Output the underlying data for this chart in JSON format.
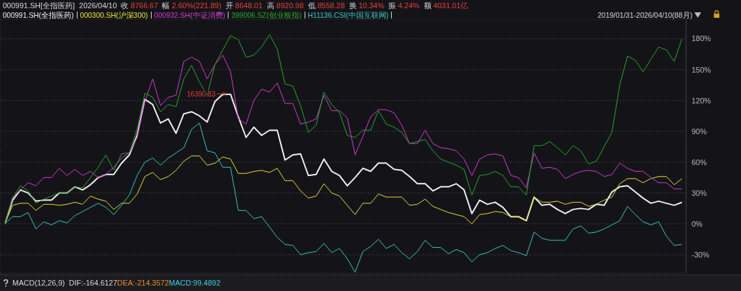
{
  "chart_data": {
    "type": "line",
    "title": "000991.SH[全指医药]  2026/04/10  收 8766.67  幅 2.60%(221.89)  开 8648.01  高 8920.98  低 8558.28  换 10.34%  振 4.24%  额 4031.01亿",
    "subtitle": "2019/01/31-2026/04/10(88月)",
    "categories": [
      null,
      null,
      null,
      null,
      null,
      null,
      null,
      null,
      null,
      null,
      null,
      null,
      null,
      null,
      null,
      null,
      null,
      null,
      null,
      null,
      null,
      null,
      null,
      null,
      null,
      null,
      null,
      null,
      null,
      null,
      null,
      null,
      null,
      null,
      null,
      null,
      null,
      null,
      null,
      null,
      null,
      null,
      null,
      null,
      null,
      null,
      null,
      null,
      null,
      null,
      null,
      null,
      null,
      null,
      null,
      null,
      null,
      null,
      null,
      null,
      null,
      null,
      null,
      null,
      null,
      null,
      null,
      null,
      null,
      null,
      null,
      null,
      null,
      null,
      null,
      null,
      null,
      null,
      null,
      null,
      null,
      null,
      null,
      null,
      null,
      null,
      null,
      null
    ],
    "series": [
      {
        "name": "000991.SH(全指医药)",
        "color": "#f2f2f2",
        "values": [
          0,
          23,
          33,
          30,
          22,
          23,
          23,
          30,
          30,
          36,
          33,
          38,
          45,
          48,
          48,
          59,
          67,
          86,
          121,
          116,
          98,
          102,
          88,
          107,
          109,
          105,
          99,
          119,
          126,
          126,
          104,
          84,
          94,
          86,
          91,
          91,
          62,
          67,
          68,
          47,
          48,
          63,
          51,
          47,
          37,
          45,
          54,
          51,
          59,
          59,
          53,
          52,
          46,
          39,
          39,
          32,
          36,
          36,
          39,
          33,
          10,
          23,
          19,
          21,
          16,
          7,
          7,
          3,
          26,
          18,
          19,
          14,
          10,
          14,
          15,
          14,
          19,
          18,
          31,
          36,
          37,
          31,
          25,
          20,
          22,
          20,
          18,
          21
        ]
      },
      {
        "name": "000300.SH(沪深300)",
        "color": "#e6e632",
        "values": [
          0,
          18,
          20,
          20,
          13,
          19,
          19,
          18,
          19,
          21,
          19,
          27,
          24,
          22,
          14,
          20,
          20,
          29,
          46,
          50,
          43,
          46,
          52,
          61,
          66,
          66,
          57,
          59,
          65,
          63,
          49,
          49,
          51,
          52,
          50,
          54,
          42,
          42,
          32,
          25,
          27,
          39,
          30,
          27,
          18,
          9,
          20,
          20,
          29,
          26,
          26,
          26,
          18,
          19,
          24,
          17,
          14,
          11,
          9,
          7,
          0,
          9,
          10,
          12,
          11,
          7,
          7,
          3,
          26,
          21,
          21,
          22,
          19,
          21,
          21,
          17,
          19,
          23,
          26,
          39,
          44,
          44,
          40,
          44,
          46,
          46,
          38,
          44
        ]
      },
      {
        "name": "000932.SH(中证消费)",
        "color": "#d93cd9",
        "values": [
          0,
          26,
          33,
          40,
          37,
          45,
          45,
          54,
          47,
          53,
          47,
          51,
          45,
          48,
          55,
          64,
          69,
          84,
          119,
          141,
          115,
          123,
          125,
          158,
          162,
          158,
          141,
          155,
          164,
          148,
          102,
          97,
          120,
          131,
          128,
          137,
          117,
          117,
          97,
          99,
          102,
          125,
          110,
          110,
          103,
          67,
          85,
          104,
          111,
          111,
          108,
          96,
          78,
          78,
          91,
          78,
          74,
          73,
          71,
          63,
          47,
          63,
          67,
          68,
          66,
          47,
          45,
          35,
          69,
          54,
          55,
          53,
          44,
          48,
          51,
          52,
          51,
          46,
          48,
          59,
          54,
          51,
          51,
          45,
          40,
          40,
          34,
          34
        ]
      },
      {
        "name": "399006.SZ(创业板指)",
        "color": "#2ca82c",
        "values": [
          0,
          25,
          37,
          32,
          20,
          24,
          27,
          30,
          30,
          36,
          35,
          45,
          55,
          67,
          52,
          68,
          69,
          92,
          127,
          123,
          109,
          116,
          114,
          141,
          154,
          138,
          125,
          155,
          169,
          183,
          179,
          162,
          164,
          172,
          184,
          170,
          136,
          134,
          115,
          89,
          96,
          128,
          116,
          108,
          86,
          84,
          91,
          91,
          110,
          97,
          94,
          89,
          78,
          80,
          82,
          71,
          63,
          60,
          57,
          53,
          28,
          47,
          48,
          51,
          47,
          36,
          36,
          28,
          76,
          76,
          80,
          74,
          67,
          76,
          71,
          58,
          61,
          75,
          89,
          135,
          163,
          159,
          148,
          160,
          172,
          169,
          158,
          180
        ]
      },
      {
        "name": "H11136.CSI(中国互联网)",
        "color": "#3cc8c8",
        "values": [
          0,
          7,
          7,
          11,
          -5,
          2,
          -1,
          3,
          1,
          8,
          12,
          16,
          20,
          16,
          9,
          18,
          28,
          47,
          60,
          64,
          57,
          64,
          69,
          74,
          92,
          98,
          71,
          69,
          55,
          55,
          13,
          13,
          5,
          7,
          -3,
          -13,
          -20,
          -21,
          -30,
          -28,
          -27,
          -19,
          -28,
          -24,
          -34,
          -47,
          -27,
          -22,
          -15,
          -24,
          -20,
          -28,
          -34,
          -27,
          -16,
          -23,
          -23,
          -29,
          -25,
          -28,
          -37,
          -30,
          -28,
          -24,
          -21,
          -26,
          -28,
          -31,
          -8,
          -14,
          -16,
          -16,
          -16,
          -5,
          -2,
          -9,
          -8,
          -5,
          -1,
          3,
          17,
          9,
          2,
          -1,
          2,
          -12,
          -21,
          -20
        ]
      }
    ],
    "ylim": [
      -48,
      199
    ],
    "yticks": [
      {
        "value": -30,
        "label": "-30%"
      },
      {
        "value": 0,
        "label": "0%"
      },
      {
        "value": 30,
        "label": "30%"
      },
      {
        "value": 60,
        "label": "60%"
      },
      {
        "value": 90,
        "label": "90%"
      },
      {
        "value": 120,
        "label": "120%"
      },
      {
        "value": 150,
        "label": "150%"
      },
      {
        "value": 180,
        "label": "180%"
      }
    ],
    "tick_labels": "y",
    "grid": true,
    "legend": "top left",
    "marker": "none",
    "line_style": "solid",
    "annotations": [
      "16390.83",
      "MACD(12,26,9)",
      "DIF:-164.6127",
      "DEA:-214.3572",
      "MACD:99.4892"
    ]
  }
}
